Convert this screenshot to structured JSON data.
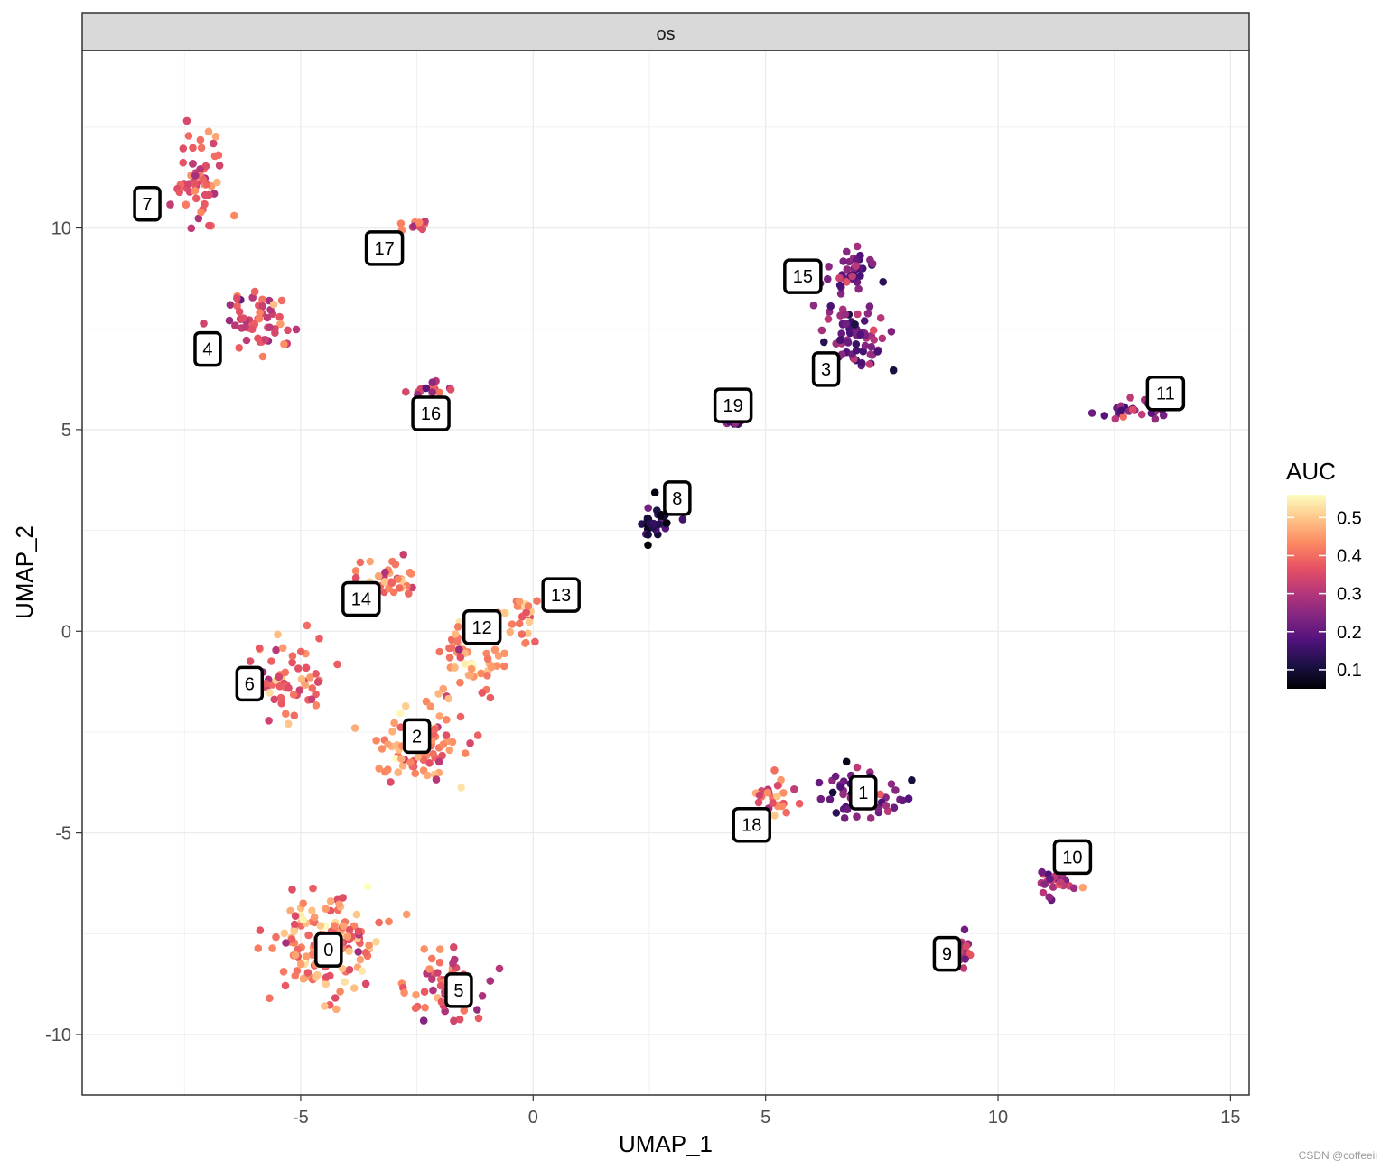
{
  "chart_data": {
    "type": "scatter",
    "facet_label": "os",
    "xlabel": "UMAP_1",
    "ylabel": "UMAP_2",
    "xlim": [
      -9.7,
      15.4
    ],
    "ylim": [
      -11.5,
      14.4
    ],
    "x_ticks": [
      -5,
      0,
      5,
      10,
      15
    ],
    "x_tick_labels": [
      "-5",
      "0",
      "5",
      "10",
      "15"
    ],
    "y_ticks": [
      -10,
      -5,
      0,
      5,
      10
    ],
    "y_tick_labels": [
      "-10",
      "-5",
      "0",
      "5",
      "10"
    ],
    "legend": {
      "title": "AUC",
      "placement": "right",
      "range": [
        0.05,
        0.56
      ],
      "ticks": [
        0.1,
        0.2,
        0.3,
        0.4,
        0.5
      ],
      "tick_labels": [
        "0.1",
        "0.2",
        "0.3",
        "0.4",
        "0.5"
      ],
      "palette": [
        "#000004",
        "#1d1147",
        "#51127c",
        "#832681",
        "#b73779",
        "#e75263",
        "#fc8961",
        "#fec488",
        "#fcfdbf"
      ]
    },
    "clusters": [
      {
        "label": "0",
        "x": -4.5,
        "y": -7.8,
        "auc": 0.43,
        "sx": 1.1,
        "sy": 1.1,
        "n": 150
      },
      {
        "label": "1",
        "x": 7.0,
        "y": -4.1,
        "auc": 0.22,
        "sx": 0.75,
        "sy": 0.6,
        "n": 60
      },
      {
        "label": "2",
        "x": -2.5,
        "y": -2.8,
        "auc": 0.43,
        "sx": 1.0,
        "sy": 0.75,
        "n": 90
      },
      {
        "label": "3",
        "x": 6.9,
        "y": 7.3,
        "auc": 0.22,
        "sx": 0.65,
        "sy": 0.75,
        "n": 70
      },
      {
        "label": "4",
        "x": -5.9,
        "y": 7.6,
        "auc": 0.34,
        "sx": 0.75,
        "sy": 0.7,
        "n": 55
      },
      {
        "label": "5",
        "x": -1.8,
        "y": -8.8,
        "auc": 0.37,
        "sx": 0.75,
        "sy": 0.75,
        "n": 65
      },
      {
        "label": "6",
        "x": -5.2,
        "y": -1.3,
        "auc": 0.37,
        "sx": 0.7,
        "sy": 0.9,
        "n": 55
      },
      {
        "label": "7",
        "x": -7.2,
        "y": 11.2,
        "auc": 0.37,
        "sx": 0.45,
        "sy": 0.95,
        "n": 60
      },
      {
        "label": "8",
        "x": 2.6,
        "y": 2.8,
        "auc": 0.1,
        "sx": 0.35,
        "sy": 0.55,
        "n": 30
      },
      {
        "label": "9",
        "x": 9.3,
        "y": -8.0,
        "auc": 0.3,
        "sx": 0.15,
        "sy": 0.35,
        "n": 18
      },
      {
        "label": "10",
        "x": 11.2,
        "y": -6.2,
        "auc": 0.3,
        "sx": 0.4,
        "sy": 0.35,
        "n": 28
      },
      {
        "label": "11",
        "x": 13.0,
        "y": 5.5,
        "auc": 0.25,
        "sx": 0.7,
        "sy": 0.25,
        "n": 28
      },
      {
        "label": "12",
        "x": -1.4,
        "y": -0.7,
        "auc": 0.46,
        "sx": 0.7,
        "sy": 0.8,
        "n": 60
      },
      {
        "label": "13",
        "x": -0.2,
        "y": 0.3,
        "auc": 0.45,
        "sx": 0.35,
        "sy": 0.7,
        "n": 25
      },
      {
        "label": "14",
        "x": -3.0,
        "y": 1.2,
        "auc": 0.42,
        "sx": 0.8,
        "sy": 0.45,
        "n": 35
      },
      {
        "label": "15",
        "x": 6.8,
        "y": 9.0,
        "auc": 0.22,
        "sx": 0.5,
        "sy": 0.5,
        "n": 40
      },
      {
        "label": "16",
        "x": -2.2,
        "y": 6.0,
        "auc": 0.34,
        "sx": 0.65,
        "sy": 0.15,
        "n": 16
      },
      {
        "label": "17",
        "x": -2.6,
        "y": 10.1,
        "auc": 0.34,
        "sx": 0.3,
        "sy": 0.2,
        "n": 10
      },
      {
        "label": "18",
        "x": 5.2,
        "y": -4.2,
        "auc": 0.4,
        "sx": 0.45,
        "sy": 0.55,
        "n": 28
      },
      {
        "label": "19",
        "x": 4.2,
        "y": 5.3,
        "auc": 0.2,
        "sx": 0.35,
        "sy": 0.25,
        "n": 14
      }
    ],
    "label_positions": [
      {
        "label": "0",
        "x": -4.4,
        "y": -7.9
      },
      {
        "label": "1",
        "x": 7.1,
        "y": -4.0
      },
      {
        "label": "2",
        "x": -2.5,
        "y": -2.6
      },
      {
        "label": "3",
        "x": 6.3,
        "y": 6.5
      },
      {
        "label": "4",
        "x": -7.0,
        "y": 7.0
      },
      {
        "label": "5",
        "x": -1.6,
        "y": -8.9
      },
      {
        "label": "6",
        "x": -6.1,
        "y": -1.3
      },
      {
        "label": "7",
        "x": -8.3,
        "y": 10.6
      },
      {
        "label": "8",
        "x": 3.1,
        "y": 3.3
      },
      {
        "label": "9",
        "x": 8.9,
        "y": -8.0
      },
      {
        "label": "10",
        "x": 11.6,
        "y": -5.6
      },
      {
        "label": "11",
        "x": 13.6,
        "y": 5.9
      },
      {
        "label": "12",
        "x": -1.1,
        "y": 0.1
      },
      {
        "label": "13",
        "x": 0.6,
        "y": 0.9
      },
      {
        "label": "14",
        "x": -3.7,
        "y": 0.8
      },
      {
        "label": "15",
        "x": 5.8,
        "y": 8.8
      },
      {
        "label": "16",
        "x": -2.2,
        "y": 5.4
      },
      {
        "label": "17",
        "x": -3.2,
        "y": 9.5
      },
      {
        "label": "18",
        "x": 4.7,
        "y": -4.8
      },
      {
        "label": "19",
        "x": 4.3,
        "y": 5.6
      }
    ]
  },
  "watermark": "CSDN @coffeeii"
}
